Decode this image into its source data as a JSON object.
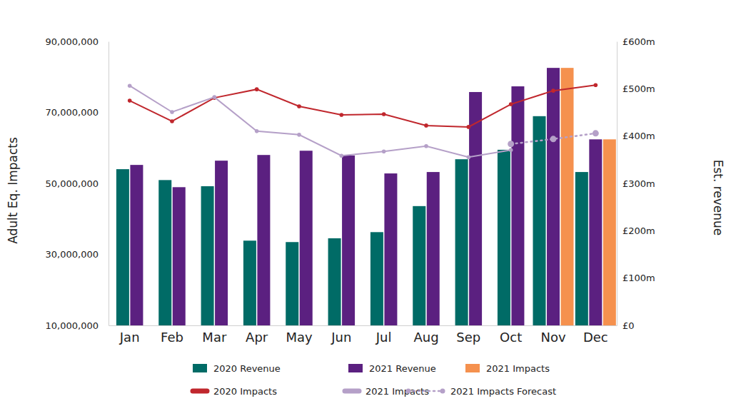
{
  "chart_data": {
    "type": "bar",
    "categories": [
      "Jan",
      "Feb",
      "Mar",
      "Apr",
      "May",
      "Jun",
      "Jul",
      "Aug",
      "Sep",
      "Oct",
      "Nov",
      "Dec"
    ],
    "y_label": "Adult Eq. Impacts",
    "y2_label": "Est. revenue",
    "ylim": [
      10000000,
      90000000
    ],
    "yticks": [
      {
        "value": 10000000,
        "label": "10,000,000"
      },
      {
        "value": 30000000,
        "label": "30,000,000"
      },
      {
        "value": 50000000,
        "label": "50,000,000"
      },
      {
        "value": 70000000,
        "label": "70,000,000"
      },
      {
        "value": 90000000,
        "label": "90,000,000"
      }
    ],
    "y2lim": [
      0,
      600
    ],
    "y2ticks": [
      {
        "value": 0,
        "label": "£0"
      },
      {
        "value": 100,
        "label": "£100m"
      },
      {
        "value": 200,
        "label": "£200m"
      },
      {
        "value": 300,
        "label": "£300m"
      },
      {
        "value": 400,
        "label": "£400m"
      },
      {
        "value": 500,
        "label": "£500m"
      },
      {
        "value": 600,
        "label": "£600m"
      }
    ],
    "legend": "bottom",
    "series": [
      {
        "name": "2020 Revenue",
        "type": "bar",
        "axis": "y2",
        "color": "#006b66",
        "values": [
          330,
          307,
          294,
          179,
          176,
          184,
          197,
          252,
          351,
          371,
          442,
          324
        ]
      },
      {
        "name": "2021 Revenue",
        "type": "bar",
        "axis": "y2",
        "color": "#5b2080",
        "values": [
          339,
          292,
          348,
          360,
          369,
          359,
          321,
          324,
          493,
          505,
          544,
          393
        ]
      },
      {
        "name": "2021 Impacts",
        "type": "bar",
        "axis": "y2",
        "color": "#f5914e",
        "values": [
          null,
          null,
          null,
          null,
          null,
          null,
          null,
          null,
          null,
          null,
          544,
          393
        ]
      },
      {
        "name": "2020 Impacts",
        "type": "line",
        "color": "#c0272d",
        "marker": "circle",
        "line_style": "solid",
        "values": [
          73300000,
          67500000,
          74100000,
          76500000,
          71700000,
          69300000,
          69500000,
          66300000,
          65900000,
          72300000,
          76100000,
          77700000
        ]
      },
      {
        "name": "2021 Impacts",
        "type": "line",
        "color": "#b5a0c8",
        "marker": "circle",
        "line_style": "solid",
        "values": [
          77500000,
          70100000,
          74300000,
          64700000,
          63700000,
          57800000,
          59000000,
          60500000,
          57400000,
          59400000,
          null,
          null
        ]
      },
      {
        "name": "2021 Impacts Forecast",
        "type": "line",
        "color": "#b5a0c8",
        "marker": "circle",
        "line_style": "dotted",
        "values": [
          null,
          null,
          null,
          null,
          null,
          null,
          null,
          null,
          null,
          61100000,
          62500000,
          64100000
        ]
      }
    ]
  }
}
